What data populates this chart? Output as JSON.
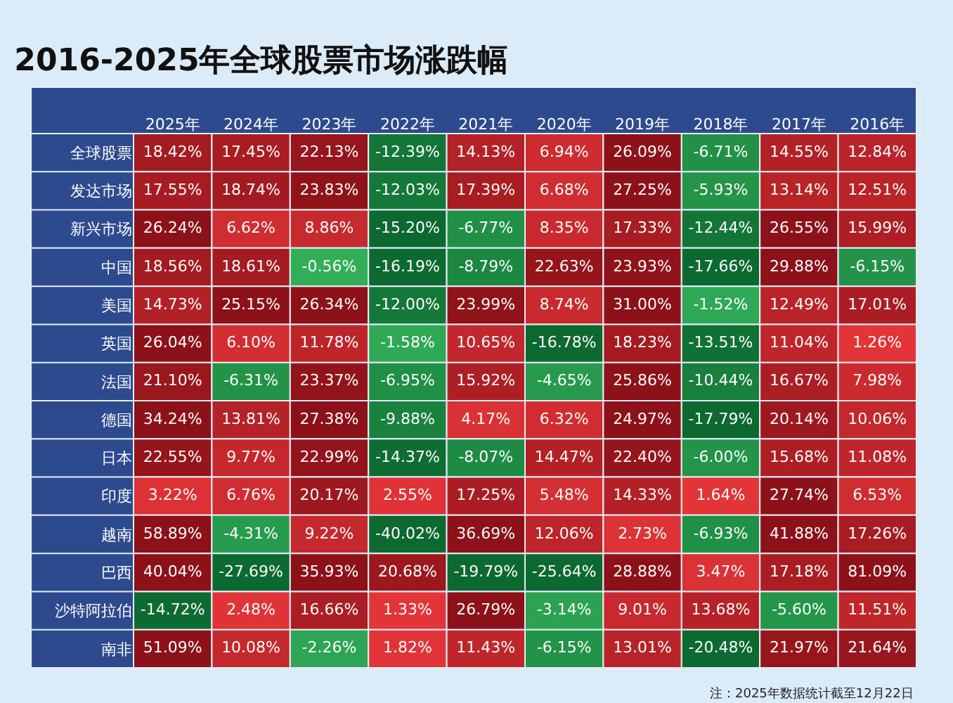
{
  "chart_data": {
    "type": "heatmap",
    "title": "2016-2025年全球股票市场涨跌幅",
    "categories": [
      "2025年",
      "2024年",
      "2023年",
      "2022年",
      "2021年",
      "2020年",
      "2019年",
      "2018年",
      "2017年",
      "2016年"
    ],
    "y_categories": [
      "全球股票",
      "发达市场",
      "新兴市场",
      "中国",
      "美国",
      "英国",
      "法国",
      "德国",
      "日本",
      "印度",
      "越南",
      "巴西",
      "沙特阿拉伯",
      "南非"
    ],
    "cells": [
      [
        18.42,
        17.45,
        22.13,
        -12.39,
        14.13,
        6.94,
        26.09,
        -6.71,
        14.55,
        12.84
      ],
      [
        17.55,
        18.74,
        23.83,
        -12.03,
        17.39,
        6.68,
        27.25,
        -5.93,
        13.14,
        12.51
      ],
      [
        26.24,
        6.62,
        8.86,
        -15.2,
        -6.77,
        8.35,
        17.33,
        -12.44,
        26.55,
        15.99
      ],
      [
        18.56,
        18.61,
        -0.56,
        -16.19,
        -8.79,
        22.63,
        23.93,
        -17.66,
        29.88,
        -6.15
      ],
      [
        14.73,
        25.15,
        26.34,
        -12.0,
        23.99,
        8.74,
        31.0,
        -1.52,
        12.49,
        17.01
      ],
      [
        26.04,
        6.1,
        11.78,
        -1.58,
        10.65,
        -16.78,
        18.23,
        -13.51,
        11.04,
        1.26
      ],
      [
        21.1,
        -6.31,
        23.37,
        -6.95,
        15.92,
        -4.65,
        25.86,
        -10.44,
        16.67,
        7.98
      ],
      [
        34.24,
        13.81,
        27.38,
        -9.88,
        4.17,
        6.32,
        24.97,
        -17.79,
        20.14,
        10.06
      ],
      [
        22.55,
        9.77,
        22.99,
        -14.37,
        -8.07,
        14.47,
        22.4,
        -6.0,
        15.68,
        11.08
      ],
      [
        3.22,
        6.76,
        20.17,
        2.55,
        17.25,
        5.48,
        14.33,
        1.64,
        27.74,
        6.53
      ],
      [
        58.89,
        -4.31,
        9.22,
        -40.02,
        36.69,
        12.06,
        2.73,
        -6.93,
        41.88,
        17.26
      ],
      [
        40.04,
        -27.69,
        35.93,
        20.68,
        -19.79,
        -25.64,
        28.88,
        3.47,
        17.18,
        81.09
      ],
      [
        -14.72,
        2.48,
        16.66,
        1.33,
        26.79,
        -3.14,
        9.01,
        13.68,
        -5.6,
        11.51
      ],
      [
        51.09,
        10.08,
        -2.26,
        1.82,
        11.43,
        -6.15,
        13.01,
        -20.48,
        21.97,
        21.64
      ]
    ],
    "cell_labels": [
      [
        "18.42%",
        "17.45%",
        "22.13%",
        "-12.39%",
        "14.13%",
        "6.94%",
        "26.09%",
        "-6.71%",
        "14.55%",
        "12.84%"
      ],
      [
        "17.55%",
        "18.74%",
        "23.83%",
        "-12.03%",
        "17.39%",
        "6.68%",
        "27.25%",
        "-5.93%",
        "13.14%",
        "12.51%"
      ],
      [
        "26.24%",
        "6.62%",
        "8.86%",
        "-15.20%",
        "-6.77%",
        "8.35%",
        "17.33%",
        "-12.44%",
        "26.55%",
        "15.99%"
      ],
      [
        "18.56%",
        "18.61%",
        "-0.56%",
        "-16.19%",
        "-8.79%",
        "22.63%",
        "23.93%",
        "-17.66%",
        "29.88%",
        "-6.15%"
      ],
      [
        "14.73%",
        "25.15%",
        "26.34%",
        "-12.00%",
        "23.99%",
        "8.74%",
        "31.00%",
        "-1.52%",
        "12.49%",
        "17.01%"
      ],
      [
        "26.04%",
        "6.10%",
        "11.78%",
        "-1.58%",
        "10.65%",
        "-16.78%",
        "18.23%",
        "-13.51%",
        "11.04%",
        "1.26%"
      ],
      [
        "21.10%",
        "-6.31%",
        "23.37%",
        "-6.95%",
        "15.92%",
        "-4.65%",
        "25.86%",
        "-10.44%",
        "16.67%",
        "7.98%"
      ],
      [
        "34.24%",
        "13.81%",
        "27.38%",
        "-9.88%",
        "4.17%",
        "6.32%",
        "24.97%",
        "-17.79%",
        "20.14%",
        "10.06%"
      ],
      [
        "22.55%",
        "9.77%",
        "22.99%",
        "-14.37%",
        "-8.07%",
        "14.47%",
        "22.40%",
        "-6.00%",
        "15.68%",
        "11.08%"
      ],
      [
        "3.22%",
        "6.76%",
        "20.17%",
        "2.55%",
        "17.25%",
        "5.48%",
        "14.33%",
        "1.64%",
        "27.74%",
        "6.53%"
      ],
      [
        "58.89%",
        "-4.31%",
        "9.22%",
        "-40.02%",
        "36.69%",
        "12.06%",
        "2.73%",
        "-6.93%",
        "41.88%",
        "17.26%"
      ],
      [
        "40.04%",
        "-27.69%",
        "35.93%",
        "20.68%",
        "-19.79%",
        "-25.64%",
        "28.88%",
        "3.47%",
        "17.18%",
        "81.09%"
      ],
      [
        "-14.72%",
        "2.48%",
        "16.66%",
        "1.33%",
        "26.79%",
        "-3.14%",
        "9.01%",
        "13.68%",
        "-5.60%",
        "11.51%"
      ],
      [
        "51.09%",
        "10.08%",
        "-2.26%",
        "1.82%",
        "11.43%",
        "-6.15%",
        "13.01%",
        "-20.48%",
        "21.97%",
        "21.64%"
      ]
    ],
    "annotations": [
      "注：2025年数据统计截至12月22日"
    ]
  }
}
